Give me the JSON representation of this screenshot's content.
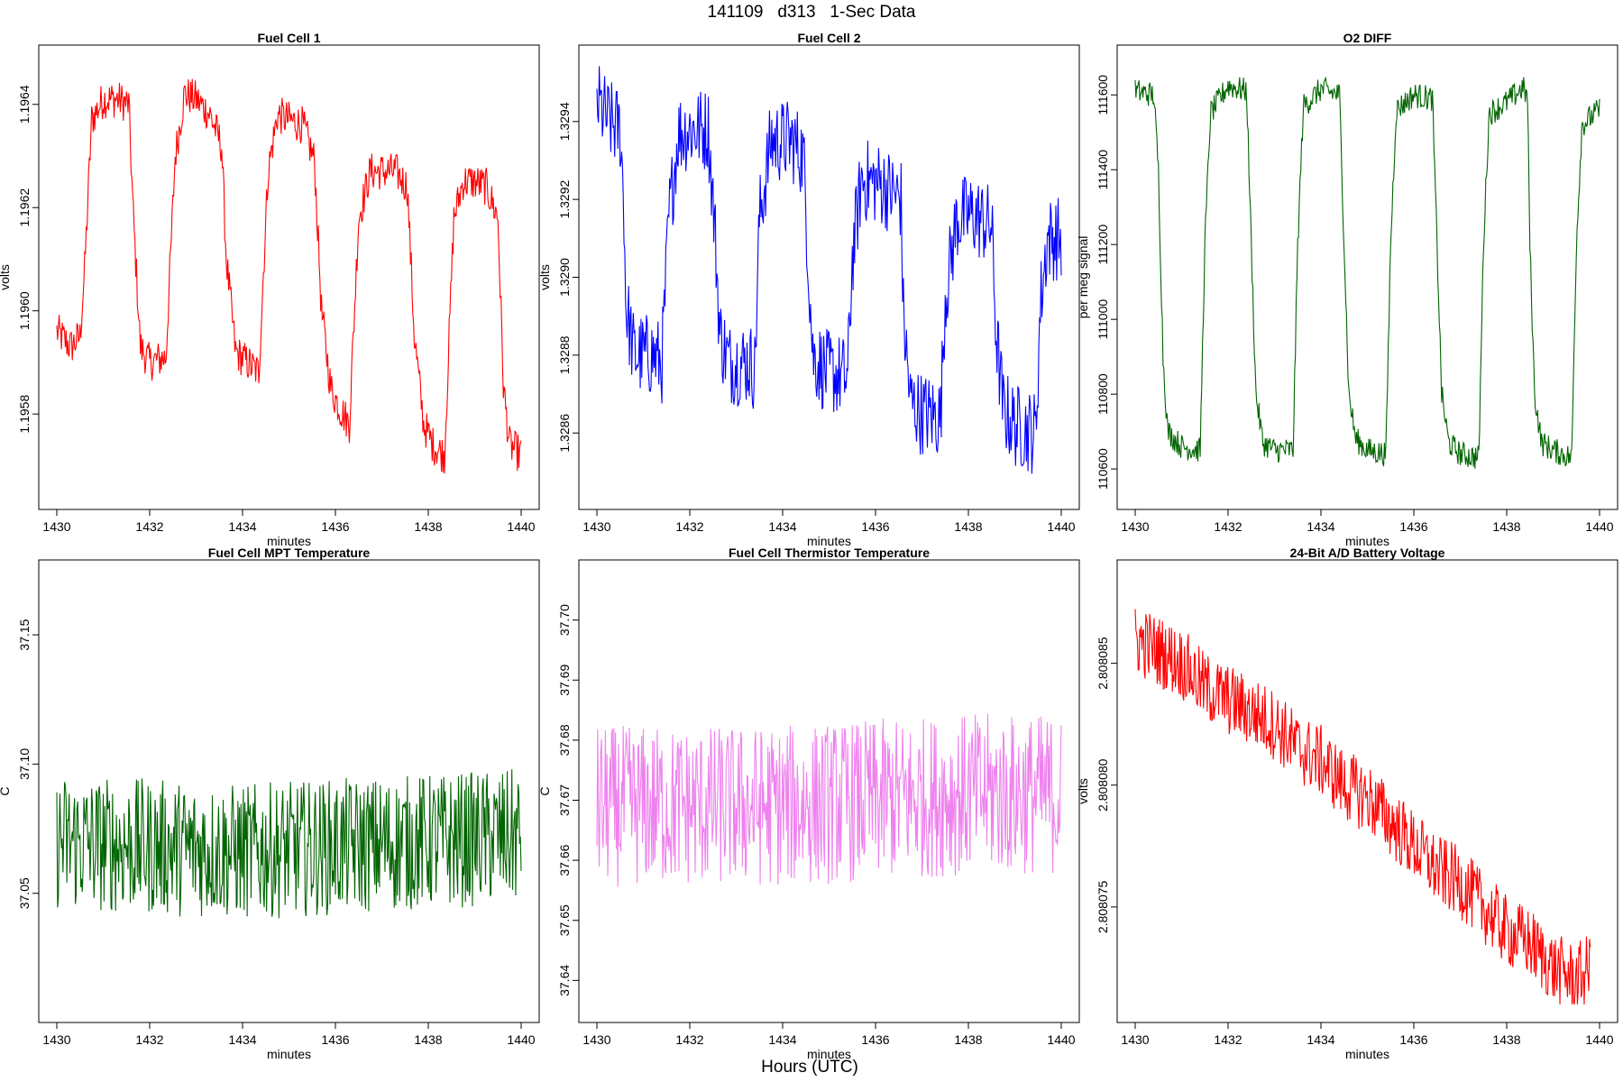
{
  "figure": {
    "title": "141109   d313   1-Sec Data",
    "xlabel_outer": "Hours (UTC)"
  },
  "chart_data": [
    {
      "type": "line",
      "title": "Fuel Cell 1",
      "xlabel": "minutes",
      "ylabel": "volts",
      "color": "#ff0000",
      "xlim": [
        1430,
        1440
      ],
      "ylim": [
        1.19565,
        1.19648
      ],
      "xticks": [
        1430,
        1432,
        1434,
        1436,
        1438,
        1440
      ],
      "xtick_labels": [
        "1430",
        "1432",
        "1434",
        "1436",
        "1438",
        "1440"
      ],
      "yticks": [
        1.1958,
        1.196,
        1.1962,
        1.1964
      ],
      "ytick_labels": [
        "1.1958",
        "1.1960",
        "1.1962",
        "1.1964"
      ],
      "series": [
        {
          "name": "Fuel Cell 1",
          "values": [
            [
              1430.0,
              1.19596
            ],
            [
              1430.3,
              1.19593
            ],
            [
              1430.5,
              1.19595
            ],
            [
              1430.6,
              1.19608
            ],
            [
              1430.75,
              1.19637
            ],
            [
              1431.0,
              1.19641
            ],
            [
              1431.3,
              1.19641
            ],
            [
              1431.55,
              1.1964
            ],
            [
              1431.65,
              1.19618
            ],
            [
              1431.8,
              1.19593
            ],
            [
              1432.0,
              1.1959
            ],
            [
              1432.35,
              1.19591
            ],
            [
              1432.55,
              1.1963
            ],
            [
              1432.75,
              1.19642
            ],
            [
              1433.0,
              1.19641
            ],
            [
              1433.3,
              1.19638
            ],
            [
              1433.55,
              1.19632
            ],
            [
              1433.65,
              1.1961
            ],
            [
              1433.85,
              1.19592
            ],
            [
              1434.1,
              1.1959
            ],
            [
              1434.35,
              1.19588
            ],
            [
              1434.55,
              1.19627
            ],
            [
              1434.75,
              1.19638
            ],
            [
              1435.0,
              1.19637
            ],
            [
              1435.3,
              1.19636
            ],
            [
              1435.55,
              1.19629
            ],
            [
              1435.7,
              1.196
            ],
            [
              1435.9,
              1.19585
            ],
            [
              1436.1,
              1.19581
            ],
            [
              1436.3,
              1.19578
            ],
            [
              1436.5,
              1.19618
            ],
            [
              1436.75,
              1.19627
            ],
            [
              1437.0,
              1.19627
            ],
            [
              1437.3,
              1.19627
            ],
            [
              1437.55,
              1.19624
            ],
            [
              1437.7,
              1.19595
            ],
            [
              1437.9,
              1.19578
            ],
            [
              1438.1,
              1.19574
            ],
            [
              1438.35,
              1.19572
            ],
            [
              1438.55,
              1.19618
            ],
            [
              1438.75,
              1.19625
            ],
            [
              1439.0,
              1.19625
            ],
            [
              1439.25,
              1.19624
            ],
            [
              1439.5,
              1.19618
            ],
            [
              1439.62,
              1.19585
            ],
            [
              1439.75,
              1.19574
            ],
            [
              1440.0,
              1.19572
            ]
          ]
        }
      ]
    },
    {
      "type": "line",
      "title": "Fuel Cell 2",
      "xlabel": "minutes",
      "ylabel": "volts",
      "color": "#0000ff",
      "xlim": [
        1430,
        1440
      ],
      "ylim": [
        1.32845,
        1.32955
      ],
      "xticks": [
        1430,
        1432,
        1434,
        1436,
        1438,
        1440
      ],
      "xtick_labels": [
        "1430",
        "1432",
        "1434",
        "1436",
        "1438",
        "1440"
      ],
      "yticks": [
        1.3286,
        1.3288,
        1.329,
        1.3292,
        1.3294
      ],
      "ytick_labels": [
        "1.3286",
        "1.3288",
        "1.3290",
        "1.3292",
        "1.3294"
      ],
      "series": [
        {
          "name": "Fuel Cell 2",
          "values": [
            [
              1430.0,
              1.32945
            ],
            [
              1430.25,
              1.3294
            ],
            [
              1430.5,
              1.32938
            ],
            [
              1430.58,
              1.3292
            ],
            [
              1430.62,
              1.32893
            ],
            [
              1430.8,
              1.3288
            ],
            [
              1431.2,
              1.3288
            ],
            [
              1431.4,
              1.32878
            ],
            [
              1431.55,
              1.32915
            ],
            [
              1431.75,
              1.32937
            ],
            [
              1432.0,
              1.32938
            ],
            [
              1432.4,
              1.32938
            ],
            [
              1432.55,
              1.3291
            ],
            [
              1432.65,
              1.32885
            ],
            [
              1432.85,
              1.32878
            ],
            [
              1433.3,
              1.32878
            ],
            [
              1433.4,
              1.32876
            ],
            [
              1433.5,
              1.32915
            ],
            [
              1433.75,
              1.32935
            ],
            [
              1434.2,
              1.32935
            ],
            [
              1434.45,
              1.32931
            ],
            [
              1434.55,
              1.32905
            ],
            [
              1434.65,
              1.3288
            ],
            [
              1434.9,
              1.32876
            ],
            [
              1435.4,
              1.32874
            ],
            [
              1435.5,
              1.32905
            ],
            [
              1435.7,
              1.32925
            ],
            [
              1436.1,
              1.32924
            ],
            [
              1436.55,
              1.3292
            ],
            [
              1436.6,
              1.3289
            ],
            [
              1436.75,
              1.32868
            ],
            [
              1437.0,
              1.32865
            ],
            [
              1437.4,
              1.32864
            ],
            [
              1437.5,
              1.32895
            ],
            [
              1437.75,
              1.32915
            ],
            [
              1438.1,
              1.32916
            ],
            [
              1438.5,
              1.32913
            ],
            [
              1438.6,
              1.32885
            ],
            [
              1438.75,
              1.32866
            ],
            [
              1439.0,
              1.32862
            ],
            [
              1439.45,
              1.3286
            ],
            [
              1439.55,
              1.32893
            ],
            [
              1439.7,
              1.3291
            ],
            [
              1440.0,
              1.3291
            ]
          ]
        }
      ]
    },
    {
      "type": "line",
      "title": "O2 DIFF",
      "xlabel": "minutes",
      "ylabel": "per meg signal",
      "color": "#006400",
      "xlim": [
        1430,
        1440
      ],
      "ylim": [
        110540,
        111685
      ],
      "xticks": [
        1430,
        1432,
        1434,
        1436,
        1438,
        1440
      ],
      "xtick_labels": [
        "1430",
        "1432",
        "1434",
        "1436",
        "1438",
        "1440"
      ],
      "yticks": [
        110600,
        110800,
        111000,
        111200,
        111400,
        111600
      ],
      "ytick_labels": [
        "110600",
        "110800",
        "111000",
        "111200",
        "111400",
        "111600"
      ],
      "series": [
        {
          "name": "O2 DIFF",
          "values": [
            [
              1430.0,
              111610
            ],
            [
              1430.4,
              111600
            ],
            [
              1430.5,
              111400
            ],
            [
              1430.6,
              110900
            ],
            [
              1430.7,
              110700
            ],
            [
              1431.0,
              110660
            ],
            [
              1431.4,
              110650
            ],
            [
              1431.5,
              111200
            ],
            [
              1431.62,
              111550
            ],
            [
              1432.0,
              111625
            ],
            [
              1432.4,
              111610
            ],
            [
              1432.5,
              111200
            ],
            [
              1432.6,
              110800
            ],
            [
              1432.75,
              110670
            ],
            [
              1433.0,
              110650
            ],
            [
              1433.4,
              110650
            ],
            [
              1433.5,
              111200
            ],
            [
              1433.62,
              111570
            ],
            [
              1434.0,
              111615
            ],
            [
              1434.4,
              111600
            ],
            [
              1434.5,
              111200
            ],
            [
              1434.6,
              110800
            ],
            [
              1434.75,
              110680
            ],
            [
              1435.0,
              110650
            ],
            [
              1435.4,
              110640
            ],
            [
              1435.5,
              111200
            ],
            [
              1435.62,
              111560
            ],
            [
              1436.0,
              111600
            ],
            [
              1436.4,
              111590
            ],
            [
              1436.5,
              111200
            ],
            [
              1436.6,
              110800
            ],
            [
              1436.75,
              110670
            ],
            [
              1437.0,
              110640
            ],
            [
              1437.4,
              110630
            ],
            [
              1437.5,
              111200
            ],
            [
              1437.62,
              111550
            ],
            [
              1438.0,
              111580
            ],
            [
              1438.35,
              111620
            ],
            [
              1438.45,
              111590
            ],
            [
              1438.5,
              111200
            ],
            [
              1438.6,
              110800
            ],
            [
              1438.75,
              110670
            ],
            [
              1439.0,
              110650
            ],
            [
              1439.4,
              110630
            ],
            [
              1439.5,
              111200
            ],
            [
              1439.62,
              111520
            ],
            [
              1440.0,
              111560
            ]
          ]
        }
      ]
    },
    {
      "type": "line",
      "title": "Fuel Cell MPT Temperature",
      "xlabel": "minutes",
      "ylabel": "C",
      "color": "#006400",
      "xlim": [
        1430,
        1440
      ],
      "ylim": [
        37.007,
        37.172
      ],
      "xticks": [
        1430,
        1432,
        1434,
        1436,
        1438,
        1440
      ],
      "xtick_labels": [
        "1430",
        "1432",
        "1434",
        "1436",
        "1438",
        "1440"
      ],
      "yticks": [
        37.05,
        37.1,
        37.15
      ],
      "ytick_labels": [
        "37.05",
        "37.10",
        "37.15"
      ],
      "series": [
        {
          "name": "Fuel Cell MPT Temperature",
          "values": [
            [
              1430.0,
              37.07
            ],
            [
              1432.0,
              37.068
            ],
            [
              1434.0,
              37.066
            ],
            [
              1436.0,
              37.068
            ],
            [
              1438.0,
              37.07
            ],
            [
              1440.0,
              37.072
            ]
          ]
        }
      ]
    },
    {
      "type": "line",
      "title": "Fuel Cell Thermistor Temperature",
      "xlabel": "minutes",
      "ylabel": "C",
      "color": "#ee82ee",
      "xlim": [
        1430,
        1440
      ],
      "ylim": [
        37.636,
        37.707
      ],
      "xticks": [
        1430,
        1432,
        1434,
        1436,
        1438,
        1440
      ],
      "xtick_labels": [
        "1430",
        "1432",
        "1434",
        "1436",
        "1438",
        "1440"
      ],
      "yticks": [
        37.64,
        37.65,
        37.66,
        37.67,
        37.68,
        37.69,
        37.7
      ],
      "ytick_labels": [
        "37.64",
        "37.65",
        "37.66",
        "37.67",
        "37.68",
        "37.69",
        "37.70"
      ],
      "series": [
        {
          "name": "Fuel Cell Thermistor Temperature",
          "values": [
            [
              1430.0,
              37.669
            ],
            [
              1432.0,
              37.669
            ],
            [
              1434.0,
              37.669
            ],
            [
              1436.0,
              37.67
            ],
            [
              1438.0,
              37.671
            ],
            [
              1440.0,
              37.671
            ]
          ]
        }
      ]
    },
    {
      "type": "line",
      "title": "24-Bit A/D Battery Voltage",
      "xlabel": "minutes",
      "ylabel": "volts",
      "color": "#ff0000",
      "xlim": [
        1430,
        1440
      ],
      "ylim": [
        2.808071,
        2.8080885
      ],
      "xticks": [
        1430,
        1432,
        1434,
        1436,
        1438,
        1440
      ],
      "xtick_labels": [
        "1430",
        "1432",
        "1434",
        "1436",
        "1438",
        "1440"
      ],
      "yticks": [
        2.808075,
        2.80808,
        2.808085
      ],
      "ytick_labels": [
        "2.808075",
        "2.808080",
        "2.808085"
      ],
      "series": [
        {
          "name": "24-Bit A/D Battery Voltage",
          "values": [
            [
              1430.0,
              2.808086
            ],
            [
              1430.5,
              2.8080855
            ],
            [
              1431.0,
              2.808085
            ],
            [
              1431.5,
              2.808084
            ],
            [
              1432.0,
              2.8080835
            ],
            [
              1432.5,
              2.808083
            ],
            [
              1433.0,
              2.8080825
            ],
            [
              1433.5,
              2.8080815
            ],
            [
              1434.0,
              2.808081
            ],
            [
              1434.5,
              2.80808
            ],
            [
              1435.0,
              2.8080795
            ],
            [
              1435.5,
              2.8080785
            ],
            [
              1436.0,
              2.8080775
            ],
            [
              1436.5,
              2.8080765
            ],
            [
              1437.0,
              2.808076
            ],
            [
              1437.5,
              2.808075
            ],
            [
              1438.0,
              2.808074
            ],
            [
              1438.5,
              2.8080735
            ],
            [
              1439.0,
              2.8080725
            ],
            [
              1439.5,
              2.808072
            ],
            [
              1439.8,
              2.8080725
            ]
          ]
        }
      ]
    }
  ]
}
